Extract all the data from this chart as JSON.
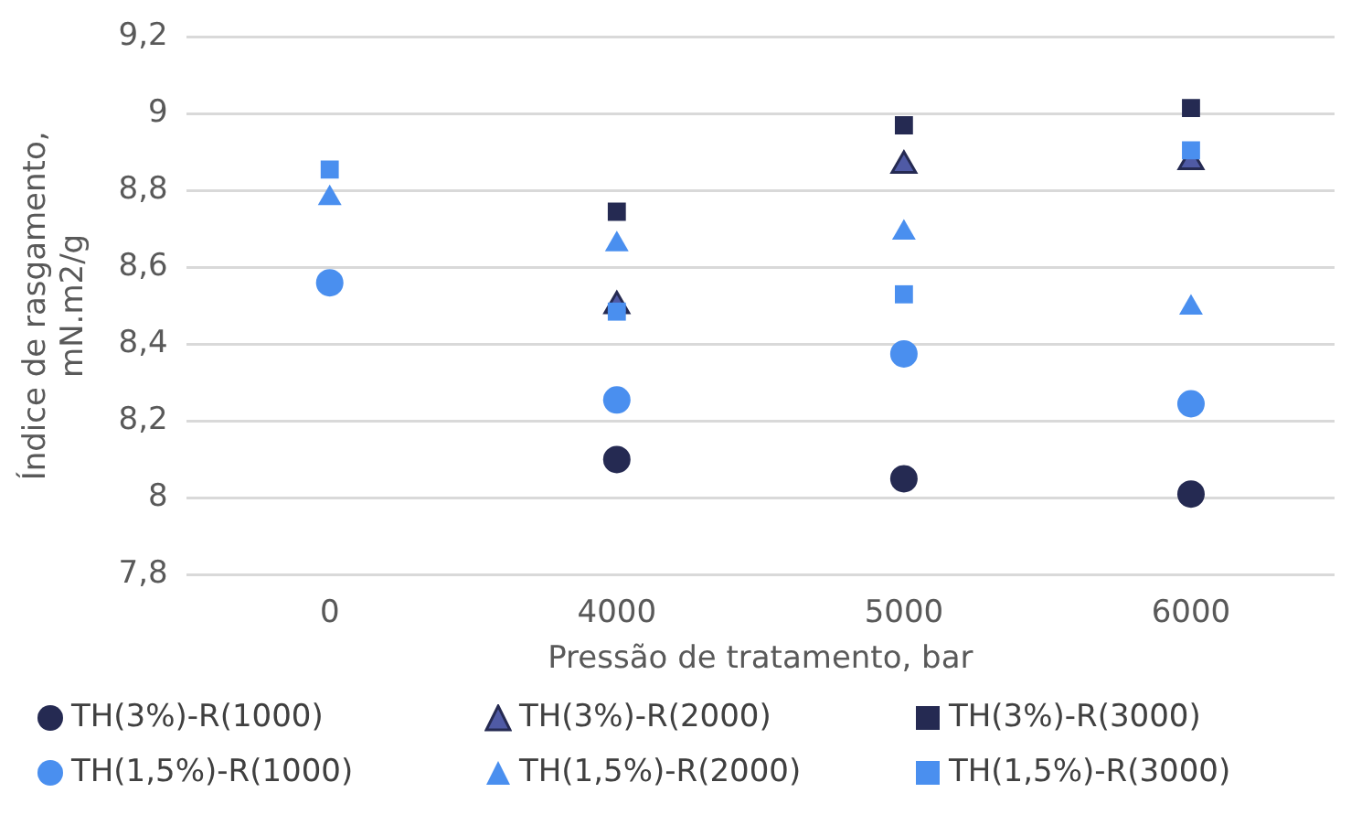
{
  "chart_data": {
    "type": "scatter",
    "xlabel": "Pressão de tratamento, bar",
    "ylabel": "Índice de rasgamento, mN.m2/g",
    "categories": [
      "0",
      "4000",
      "5000",
      "6000"
    ],
    "ylim": [
      7.8,
      9.2
    ],
    "yticks": [
      {
        "value": 7.8,
        "label": "7,8"
      },
      {
        "value": 8,
        "label": "8"
      },
      {
        "value": 8.2,
        "label": "8,2"
      },
      {
        "value": 8.4,
        "label": "8,4"
      },
      {
        "value": 8.6,
        "label": "8,6"
      },
      {
        "value": 8.8,
        "label": "8,8"
      },
      {
        "value": 9,
        "label": "9"
      },
      {
        "value": 9.2,
        "label": "9,2"
      }
    ],
    "grid": "y",
    "legend": "bottom",
    "series": [
      {
        "name": "TH(3%)-R(1000)",
        "color": "#252a52",
        "marker": "circle",
        "values": [
          null,
          8.1,
          8.05,
          8.01
        ]
      },
      {
        "name": "TH(3%)-R(2000)",
        "color": "#4f5aa5",
        "marker": "triangle",
        "values": [
          null,
          8.5,
          8.865,
          8.875
        ]
      },
      {
        "name": "TH(3%)-R(3000)",
        "color": "#252a52",
        "marker": "square",
        "values": [
          null,
          8.745,
          8.97,
          9.015
        ]
      },
      {
        "name": "TH(1,5%)-R(1000)",
        "color": "#4a8fef",
        "marker": "circle",
        "values": [
          8.56,
          8.255,
          8.375,
          8.245
        ]
      },
      {
        "name": "TH(1,5%)-R(2000)",
        "color": "#4a8fef",
        "marker": "triangle",
        "values": [
          8.78,
          8.66,
          8.69,
          8.495
        ]
      },
      {
        "name": "TH(1,5%)-R(3000)",
        "color": "#4a8fef",
        "marker": "square",
        "values": [
          8.855,
          8.485,
          8.53,
          8.905
        ]
      }
    ]
  }
}
